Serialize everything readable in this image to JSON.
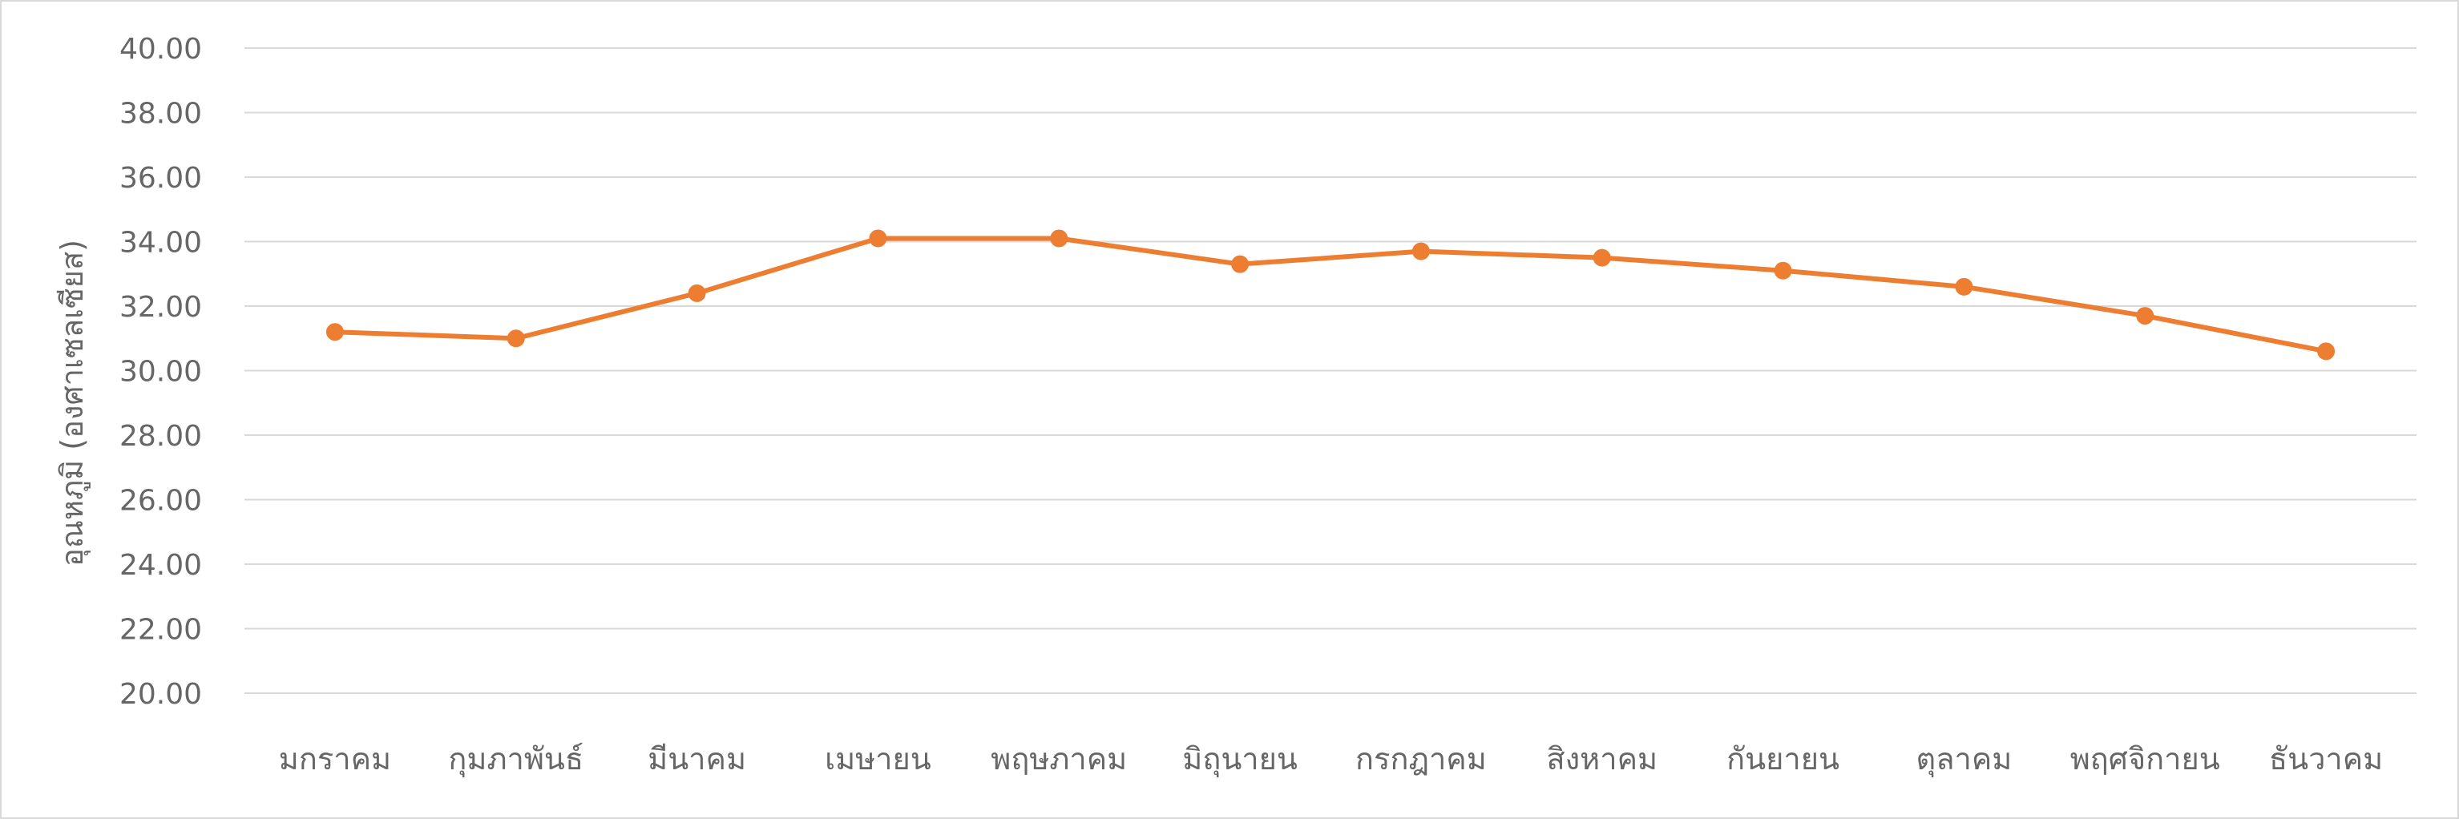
{
  "chart_data": {
    "type": "line",
    "title": "",
    "xlabel": "",
    "ylabel": "อุณหภูมิ (องศาเซลเซียส)",
    "ylim": [
      20,
      40
    ],
    "ytick_step": 2,
    "ytick_labels": [
      "20.00",
      "22.00",
      "24.00",
      "26.00",
      "28.00",
      "30.00",
      "32.00",
      "34.00",
      "36.00",
      "38.00",
      "40.00"
    ],
    "grid": true,
    "legend": "none",
    "categories": [
      "มกราคม",
      "กุมภาพันธ์",
      "มีนาคม",
      "เมษายน",
      "พฤษภาคม",
      "มิถุนายน",
      "กรกฎาคม",
      "สิงหาคม",
      "กันยายน",
      "ตุลาคม",
      "พฤศจิกายน",
      "ธันวาคม"
    ],
    "series": [
      {
        "values": [
          31.2,
          31.0,
          32.4,
          34.1,
          34.1,
          33.3,
          33.7,
          33.5,
          33.1,
          32.6,
          31.7,
          30.6
        ],
        "color": "#ed7d31"
      }
    ]
  }
}
